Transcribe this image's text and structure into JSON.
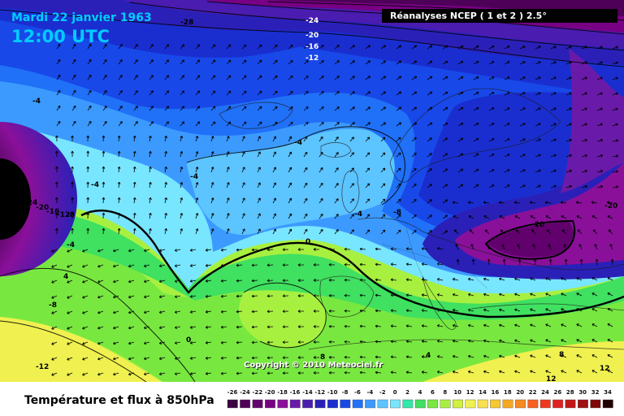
{
  "header": {
    "date": "Mardi 22 janvier 1963",
    "time": "12:00 UTC",
    "source": "Réanalyses NCEP ( 1 et 2 ) 2.5°"
  },
  "map": {
    "copyright": "Copyright © 2010 Meteociel.fr",
    "contour_labels": [
      {
        "text": "-28",
        "name": "contour-label-minus28-top"
      },
      {
        "text": "-24",
        "name": "contour-label-minus24-top"
      },
      {
        "text": "-20",
        "name": "contour-label-minus20-top"
      },
      {
        "text": "-16",
        "name": "contour-label-minus16-top"
      },
      {
        "text": "-12",
        "name": "contour-label-minus12-top"
      },
      {
        "text": "-4",
        "name": "contour-label-minus4-west"
      },
      {
        "text": "-4",
        "name": "contour-label-minus4-atlantic"
      },
      {
        "text": "-4",
        "name": "contour-label-minus4-centre"
      },
      {
        "text": "-4",
        "name": "contour-label-minus4-north"
      },
      {
        "text": "-4",
        "name": "contour-label-minus4-france"
      },
      {
        "text": "-8",
        "name": "contour-label-minus8-east"
      },
      {
        "text": "-28",
        "name": "contour-label-minus28-left"
      },
      {
        "text": "-24",
        "name": "contour-label-minus24-left"
      },
      {
        "text": "-20",
        "name": "contour-label-minus20-left"
      },
      {
        "text": "-16",
        "name": "contour-label-minus16-left"
      },
      {
        "text": "-12",
        "name": "contour-label-minus12-left"
      },
      {
        "text": "-8",
        "name": "contour-label-minus8-left"
      },
      {
        "text": "-4",
        "name": "contour-label-minus4-left"
      },
      {
        "text": "4",
        "name": "contour-label-4-west"
      },
      {
        "text": "-8",
        "name": "contour-label-minus8-sw"
      },
      {
        "text": "0",
        "name": "contour-label-0-centre"
      },
      {
        "text": "0",
        "name": "contour-label-0-south"
      },
      {
        "text": "-12",
        "name": "contour-label-minus12-sw"
      },
      {
        "text": "-20",
        "name": "contour-label-minus20-russia"
      },
      {
        "text": "-20",
        "name": "contour-label-minus20-east"
      },
      {
        "text": "4",
        "name": "contour-label-4-mediterranean"
      },
      {
        "text": "8",
        "name": "contour-label-8-south"
      },
      {
        "text": "8",
        "name": "contour-label-8-southeast"
      },
      {
        "text": "12",
        "name": "contour-label-12-southeast"
      },
      {
        "text": "12",
        "name": "contour-label-12-africa"
      }
    ]
  },
  "legend": {
    "title": "Température et flux à 850hPa",
    "scale": [
      {
        "label": "-26",
        "color": "#3a0040"
      },
      {
        "label": "-24",
        "color": "#4e0058"
      },
      {
        "label": "-22",
        "color": "#62006e"
      },
      {
        "label": "-20",
        "color": "#780084"
      },
      {
        "label": "-18",
        "color": "#8a109a"
      },
      {
        "label": "-16",
        "color": "#6a1aa8"
      },
      {
        "label": "-14",
        "color": "#4a1cb0"
      },
      {
        "label": "-12",
        "color": "#2a20b8"
      },
      {
        "label": "-10",
        "color": "#1a2ed0"
      },
      {
        "label": "-8",
        "color": "#1848e8"
      },
      {
        "label": "-6",
        "color": "#2070f8"
      },
      {
        "label": "-4",
        "color": "#3c9aff"
      },
      {
        "label": "-2",
        "color": "#5cc4ff"
      },
      {
        "label": "0",
        "color": "#78e6ff"
      },
      {
        "label": "2",
        "color": "#30e8a8"
      },
      {
        "label": "4",
        "color": "#40e060"
      },
      {
        "label": "6",
        "color": "#78e840"
      },
      {
        "label": "8",
        "color": "#a8f040"
      },
      {
        "label": "10",
        "color": "#d2f040"
      },
      {
        "label": "12",
        "color": "#f0f050"
      },
      {
        "label": "14",
        "color": "#f8e050"
      },
      {
        "label": "16",
        "color": "#f8c830"
      },
      {
        "label": "18",
        "color": "#f8a820"
      },
      {
        "label": "20",
        "color": "#f88820"
      },
      {
        "label": "22",
        "color": "#f86020"
      },
      {
        "label": "24",
        "color": "#f03820"
      },
      {
        "label": "26",
        "color": "#e02020"
      },
      {
        "label": "28",
        "color": "#c01818"
      },
      {
        "label": "30",
        "color": "#a01010"
      },
      {
        "label": "32",
        "color": "#800808"
      },
      {
        "label": "34",
        "color": "#200000"
      }
    ]
  }
}
